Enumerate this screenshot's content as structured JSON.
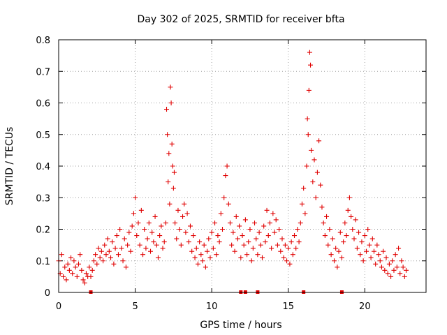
{
  "chart_data": {
    "type": "scatter",
    "title": "Day 302 of 2025, SRMTID for receiver bfta",
    "xlabel": "GPS time / hours",
    "ylabel": "SRMTID / TECUs",
    "xlim": [
      0,
      24
    ],
    "ylim": [
      0,
      0.8
    ],
    "x_ticks": [
      0,
      5,
      10,
      15,
      20
    ],
    "y_ticks": [
      0,
      0.1,
      0.2,
      0.3,
      0.4,
      0.5,
      0.6,
      0.7,
      0.8
    ],
    "x_tick_labels": [
      "0",
      "5",
      "10",
      "15",
      "20"
    ],
    "y_tick_labels": [
      "0",
      "0.1",
      "0.2",
      "0.3",
      "0.4",
      "0.5",
      "0.6",
      "0.7",
      "0.8"
    ],
    "grid": true,
    "marker": "plus",
    "marker_color": "#e00000",
    "series": [
      {
        "name": "SRMTID",
        "points": [
          [
            0.0,
            0.1
          ],
          [
            0.1,
            0.06
          ],
          [
            0.2,
            0.12
          ],
          [
            0.3,
            0.05
          ],
          [
            0.4,
            0.08
          ],
          [
            0.5,
            0.04
          ],
          [
            0.6,
            0.09
          ],
          [
            0.7,
            0.07
          ],
          [
            0.8,
            0.11
          ],
          [
            0.9,
            0.06
          ],
          [
            1.0,
            0.1
          ],
          [
            1.1,
            0.08
          ],
          [
            1.2,
            0.05
          ],
          [
            1.3,
            0.09
          ],
          [
            1.4,
            0.12
          ],
          [
            1.5,
            0.07
          ],
          [
            1.6,
            0.04
          ],
          [
            1.7,
            0.03
          ],
          [
            1.8,
            0.06
          ],
          [
            1.9,
            0.05
          ],
          [
            2.0,
            0.08
          ],
          [
            2.1,
            0.05
          ],
          [
            2.2,
            0.07
          ],
          [
            2.3,
            0.1
          ],
          [
            2.4,
            0.12
          ],
          [
            2.5,
            0.09
          ],
          [
            2.6,
            0.14
          ],
          [
            2.7,
            0.11
          ],
          [
            2.8,
            0.13
          ],
          [
            2.9,
            0.1
          ],
          [
            3.0,
            0.15
          ],
          [
            3.1,
            0.12
          ],
          [
            3.2,
            0.17
          ],
          [
            3.3,
            0.13
          ],
          [
            3.4,
            0.11
          ],
          [
            3.5,
            0.16
          ],
          [
            3.6,
            0.09
          ],
          [
            3.7,
            0.14
          ],
          [
            3.8,
            0.18
          ],
          [
            3.9,
            0.12
          ],
          [
            4.0,
            0.2
          ],
          [
            4.1,
            0.14
          ],
          [
            4.2,
            0.1
          ],
          [
            4.3,
            0.17
          ],
          [
            4.4,
            0.08
          ],
          [
            4.5,
            0.15
          ],
          [
            4.6,
            0.19
          ],
          [
            4.7,
            0.13
          ],
          [
            4.8,
            0.21
          ],
          [
            4.9,
            0.25
          ],
          [
            5.0,
            0.3
          ],
          [
            5.1,
            0.18
          ],
          [
            5.2,
            0.22
          ],
          [
            5.3,
            0.15
          ],
          [
            5.4,
            0.26
          ],
          [
            5.5,
            0.12
          ],
          [
            5.6,
            0.2
          ],
          [
            5.7,
            0.14
          ],
          [
            5.8,
            0.17
          ],
          [
            5.9,
            0.22
          ],
          [
            6.0,
            0.13
          ],
          [
            6.1,
            0.19
          ],
          [
            6.2,
            0.16
          ],
          [
            6.3,
            0.24
          ],
          [
            6.4,
            0.15
          ],
          [
            6.5,
            0.11
          ],
          [
            6.6,
            0.18
          ],
          [
            6.7,
            0.21
          ],
          [
            6.8,
            0.14
          ],
          [
            6.9,
            0.16
          ],
          [
            7.0,
            0.22
          ],
          [
            7.05,
            0.58
          ],
          [
            7.1,
            0.5
          ],
          [
            7.15,
            0.35
          ],
          [
            7.2,
            0.44
          ],
          [
            7.25,
            0.28
          ],
          [
            7.3,
            0.65
          ],
          [
            7.35,
            0.6
          ],
          [
            7.4,
            0.47
          ],
          [
            7.45,
            0.4
          ],
          [
            7.5,
            0.33
          ],
          [
            7.55,
            0.38
          ],
          [
            7.6,
            0.22
          ],
          [
            7.7,
            0.17
          ],
          [
            7.8,
            0.26
          ],
          [
            7.9,
            0.2
          ],
          [
            8.0,
            0.15
          ],
          [
            8.1,
            0.24
          ],
          [
            8.2,
            0.28
          ],
          [
            8.3,
            0.19
          ],
          [
            8.4,
            0.25
          ],
          [
            8.5,
            0.16
          ],
          [
            8.6,
            0.21
          ],
          [
            8.7,
            0.13
          ],
          [
            8.8,
            0.18
          ],
          [
            8.9,
            0.11
          ],
          [
            9.0,
            0.14
          ],
          [
            9.1,
            0.09
          ],
          [
            9.2,
            0.16
          ],
          [
            9.3,
            0.12
          ],
          [
            9.4,
            0.1
          ],
          [
            9.5,
            0.15
          ],
          [
            9.6,
            0.08
          ],
          [
            9.7,
            0.13
          ],
          [
            9.8,
            0.17
          ],
          [
            9.9,
            0.11
          ],
          [
            10.0,
            0.19
          ],
          [
            10.1,
            0.14
          ],
          [
            10.2,
            0.22
          ],
          [
            10.3,
            0.12
          ],
          [
            10.4,
            0.18
          ],
          [
            10.5,
            0.16
          ],
          [
            10.6,
            0.25
          ],
          [
            10.7,
            0.2
          ],
          [
            10.8,
            0.3
          ],
          [
            10.9,
            0.37
          ],
          [
            11.0,
            0.4
          ],
          [
            11.1,
            0.28
          ],
          [
            11.2,
            0.22
          ],
          [
            11.3,
            0.15
          ],
          [
            11.4,
            0.19
          ],
          [
            11.5,
            0.13
          ],
          [
            11.6,
            0.24
          ],
          [
            11.7,
            0.17
          ],
          [
            11.8,
            0.21
          ],
          [
            11.9,
            0.11
          ],
          [
            12.0,
            0.18
          ],
          [
            12.1,
            0.15
          ],
          [
            12.2,
            0.23
          ],
          [
            12.3,
            0.12
          ],
          [
            12.4,
            0.16
          ],
          [
            12.5,
            0.2
          ],
          [
            12.6,
            0.1
          ],
          [
            12.7,
            0.14
          ],
          [
            12.8,
            0.22
          ],
          [
            12.9,
            0.17
          ],
          [
            13.0,
            0.12
          ],
          [
            13.1,
            0.19
          ],
          [
            13.2,
            0.15
          ],
          [
            13.3,
            0.11
          ],
          [
            13.4,
            0.21
          ],
          [
            13.5,
            0.16
          ],
          [
            13.6,
            0.26
          ],
          [
            13.7,
            0.18
          ],
          [
            13.8,
            0.22
          ],
          [
            13.9,
            0.14
          ],
          [
            14.0,
            0.25
          ],
          [
            14.1,
            0.19
          ],
          [
            14.2,
            0.23
          ],
          [
            14.3,
            0.15
          ],
          [
            14.4,
            0.2
          ],
          [
            14.5,
            0.13
          ],
          [
            14.6,
            0.17
          ],
          [
            14.7,
            0.11
          ],
          [
            14.8,
            0.15
          ],
          [
            14.9,
            0.1
          ],
          [
            15.0,
            0.14
          ],
          [
            15.1,
            0.09
          ],
          [
            15.2,
            0.16
          ],
          [
            15.3,
            0.12
          ],
          [
            15.4,
            0.18
          ],
          [
            15.5,
            0.14
          ],
          [
            15.6,
            0.2
          ],
          [
            15.7,
            0.16
          ],
          [
            15.8,
            0.22
          ],
          [
            15.9,
            0.28
          ],
          [
            16.0,
            0.33
          ],
          [
            16.1,
            0.25
          ],
          [
            16.2,
            0.4
          ],
          [
            16.25,
            0.55
          ],
          [
            16.3,
            0.5
          ],
          [
            16.35,
            0.64
          ],
          [
            16.4,
            0.76
          ],
          [
            16.45,
            0.72
          ],
          [
            16.5,
            0.45
          ],
          [
            16.6,
            0.35
          ],
          [
            16.7,
            0.42
          ],
          [
            16.8,
            0.3
          ],
          [
            16.9,
            0.38
          ],
          [
            17.0,
            0.48
          ],
          [
            17.1,
            0.34
          ],
          [
            17.2,
            0.27
          ],
          [
            17.3,
            0.22
          ],
          [
            17.4,
            0.18
          ],
          [
            17.5,
            0.24
          ],
          [
            17.6,
            0.15
          ],
          [
            17.7,
            0.2
          ],
          [
            17.8,
            0.12
          ],
          [
            17.9,
            0.17
          ],
          [
            18.0,
            0.1
          ],
          [
            18.1,
            0.14
          ],
          [
            18.2,
            0.08
          ],
          [
            18.3,
            0.13
          ],
          [
            18.4,
            0.19
          ],
          [
            18.5,
            0.11
          ],
          [
            18.6,
            0.16
          ],
          [
            18.7,
            0.22
          ],
          [
            18.8,
            0.18
          ],
          [
            18.9,
            0.26
          ],
          [
            19.0,
            0.3
          ],
          [
            19.1,
            0.24
          ],
          [
            19.2,
            0.2
          ],
          [
            19.3,
            0.17
          ],
          [
            19.4,
            0.23
          ],
          [
            19.5,
            0.14
          ],
          [
            19.6,
            0.19
          ],
          [
            19.7,
            0.12
          ],
          [
            19.8,
            0.16
          ],
          [
            19.9,
            0.1
          ],
          [
            20.0,
            0.18
          ],
          [
            20.1,
            0.13
          ],
          [
            20.2,
            0.2
          ],
          [
            20.3,
            0.15
          ],
          [
            20.4,
            0.11
          ],
          [
            20.5,
            0.17
          ],
          [
            20.6,
            0.13
          ],
          [
            20.7,
            0.09
          ],
          [
            20.8,
            0.15
          ],
          [
            20.9,
            0.12
          ],
          [
            21.0,
            0.1
          ],
          [
            21.1,
            0.08
          ],
          [
            21.2,
            0.13
          ],
          [
            21.3,
            0.07
          ],
          [
            21.4,
            0.11
          ],
          [
            21.5,
            0.06
          ],
          [
            21.6,
            0.09
          ],
          [
            21.7,
            0.05
          ],
          [
            21.8,
            0.1
          ],
          [
            21.9,
            0.07
          ],
          [
            22.0,
            0.12
          ],
          [
            22.1,
            0.08
          ],
          [
            22.2,
            0.14
          ],
          [
            22.3,
            0.06
          ],
          [
            22.4,
            0.1
          ],
          [
            22.5,
            0.08
          ],
          [
            22.6,
            0.05
          ],
          [
            22.7,
            0.07
          ]
        ]
      }
    ],
    "rug_x": [
      2.1,
      11.9,
      12.2,
      13.0,
      16.0,
      18.5
    ]
  }
}
